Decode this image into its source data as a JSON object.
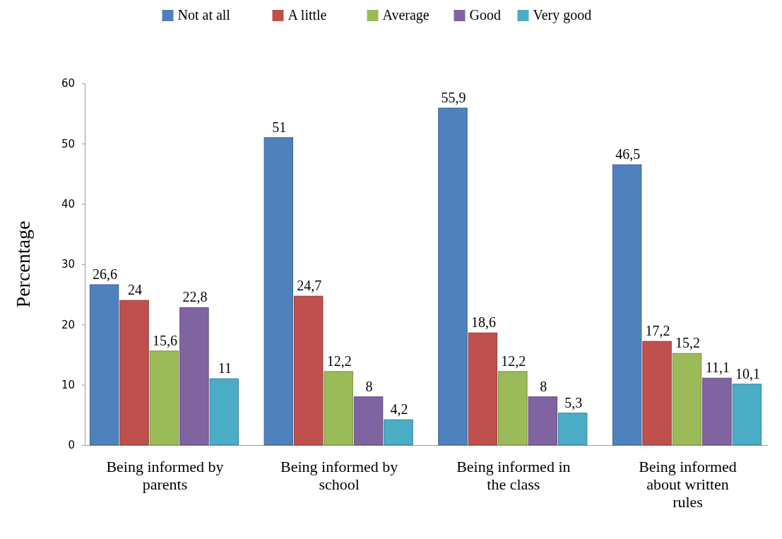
{
  "chart_data": {
    "type": "bar",
    "ylabel": "Percentage",
    "categories": [
      "Being informed by parents",
      "Being informed by school",
      "Being informed in the class",
      "Being informed about written rules"
    ],
    "series": [
      {
        "name": "Not at all",
        "color": "#4f81bd",
        "values": [
          26.6,
          51,
          55.9,
          46.5
        ],
        "value_labels": [
          "26,6",
          "51",
          "55,9",
          "46,5"
        ]
      },
      {
        "name": "A little",
        "color": "#c0504d",
        "values": [
          24,
          24.7,
          18.6,
          17.2
        ],
        "value_labels": [
          "24",
          "24,7",
          "18,6",
          "17,2"
        ]
      },
      {
        "name": "Average",
        "color": "#9bbb59",
        "values": [
          15.6,
          12.2,
          12.2,
          15.2
        ],
        "value_labels": [
          "15,6",
          "12,2",
          "12,2",
          "15,2"
        ]
      },
      {
        "name": "Good",
        "color": "#8064a2",
        "values": [
          22.8,
          8,
          8,
          11.1
        ],
        "value_labels": [
          "22,8",
          "8",
          "8",
          "11,1"
        ]
      },
      {
        "name": "Very good",
        "color": "#4bacc6",
        "values": [
          11,
          4.2,
          5.3,
          10.1
        ],
        "value_labels": [
          "11",
          "4,2",
          "5,3",
          "10,1"
        ]
      }
    ],
    "ylim": [
      0,
      60
    ],
    "yticks": [
      0,
      10,
      20,
      30,
      40,
      50,
      60
    ],
    "grid": false,
    "legend": "top"
  }
}
